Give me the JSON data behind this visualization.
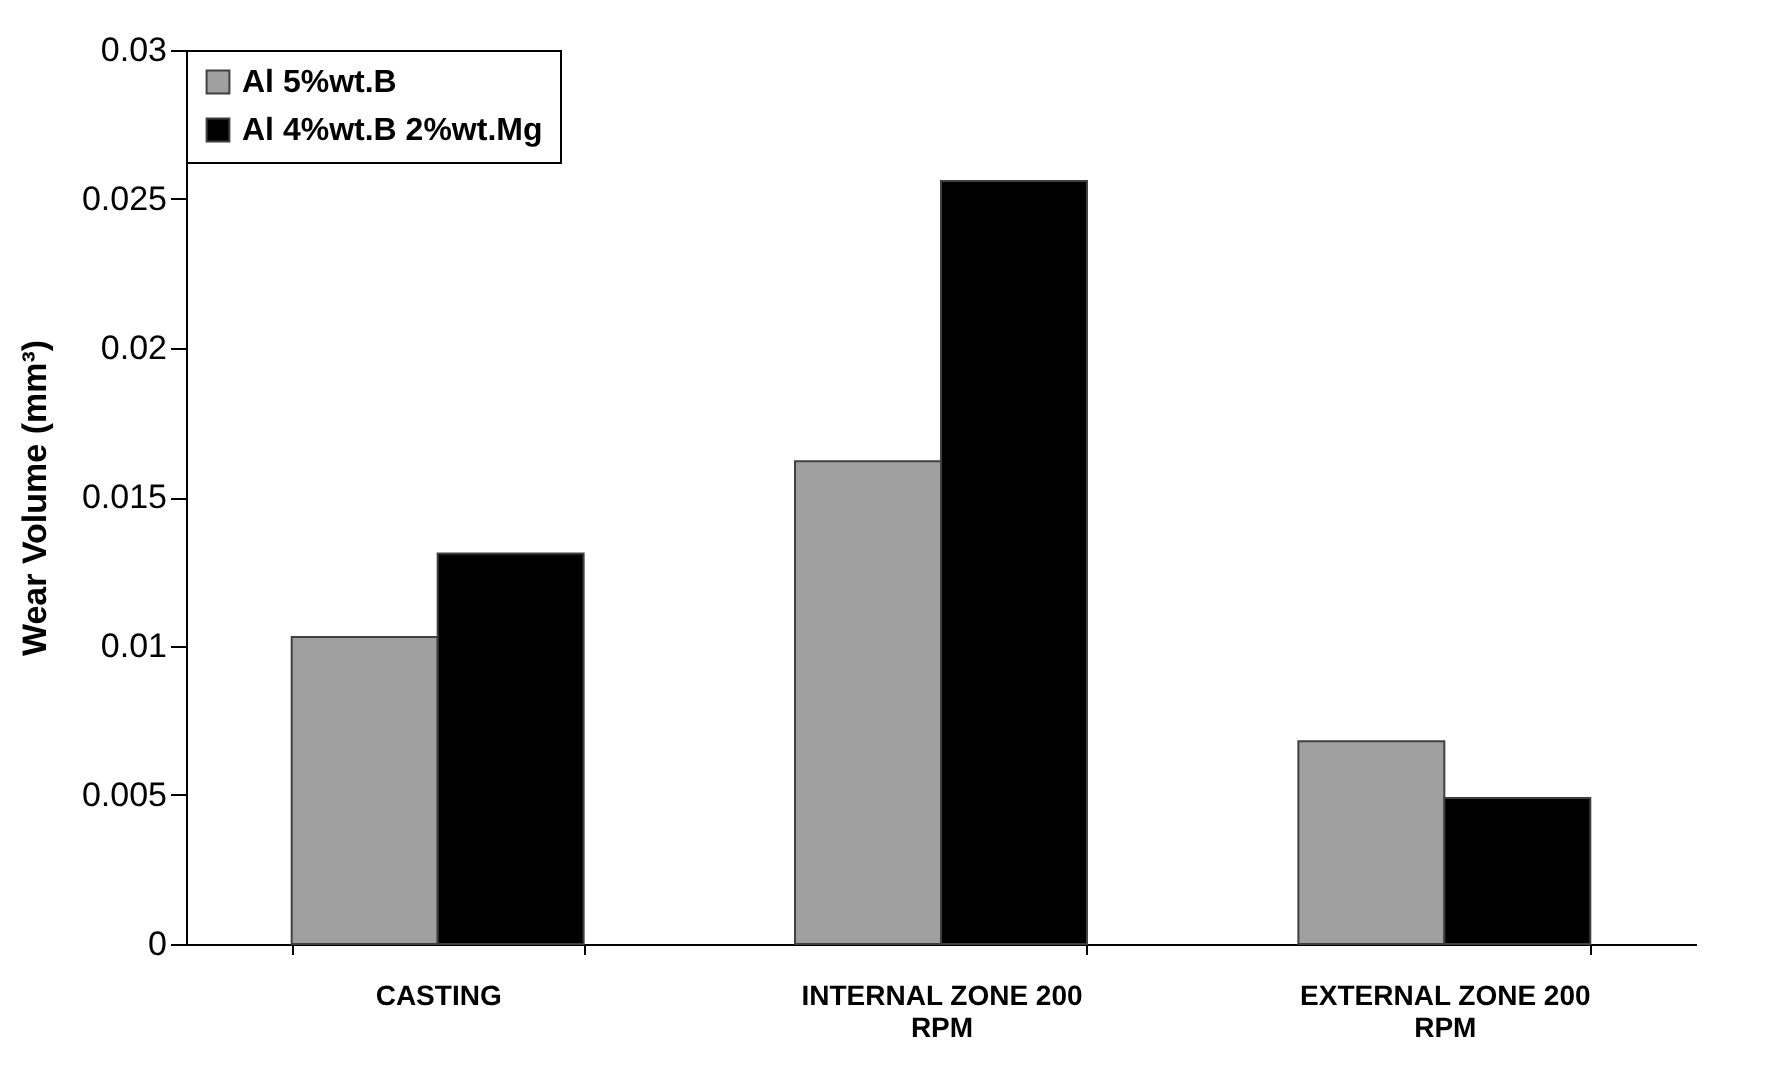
{
  "chart_data": {
    "type": "bar",
    "ylabel": "Wear Volume (mm³)",
    "categories": [
      "CASTING",
      "INTERNAL ZONE 200 RPM",
      "EXTERNAL ZONE 200 RPM"
    ],
    "series": [
      {
        "name": "Al 5%wt.B",
        "color": "#a0a0a0",
        "values": [
          0.0103,
          0.0162,
          0.0068
        ]
      },
      {
        "name": "Al 4%wt.B 2%wt.Mg",
        "color": "#000000",
        "values": [
          0.0131,
          0.0256,
          0.0049
        ]
      }
    ],
    "ylim": [
      0,
      0.03
    ],
    "yticks": [
      0,
      0.005,
      0.01,
      0.015,
      0.02,
      0.025,
      0.03
    ],
    "grid": false,
    "legend": "top left"
  }
}
